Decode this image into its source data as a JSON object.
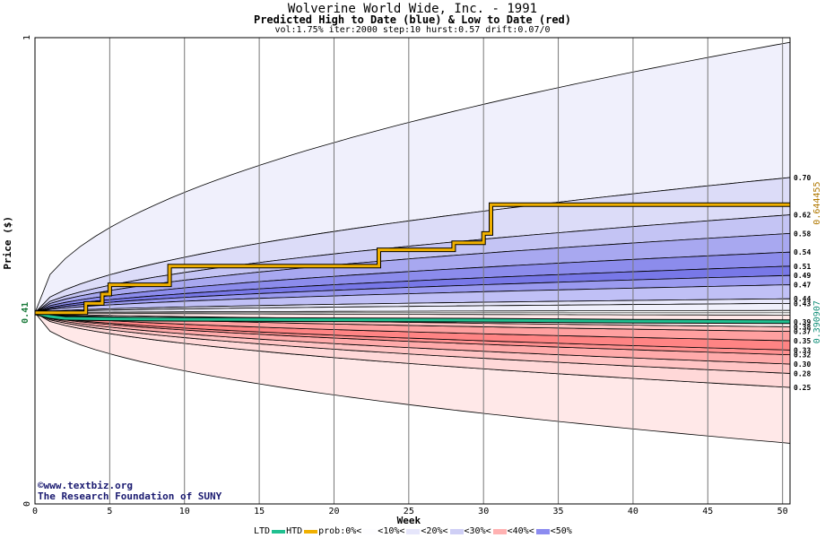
{
  "header": {
    "title": "Wolverine World Wide, Inc. - 1991",
    "subtitle": "Predicted High to Date (blue) &  Low to Date (red)",
    "params": "vol:1.75% iter:2000 step:10 hurst:0.57 drift:0.07/0"
  },
  "credits": {
    "line1": "©www.textbiz.org",
    "line2": "The Research Foundation of SUNY"
  },
  "legend": {
    "ltd_label": "LTD",
    "htd_label": "HTD",
    "prob_label": "prob:0%<",
    "bins": [
      "<10%<",
      "<20%<",
      "<30%<",
      "<40%<",
      "<50%"
    ],
    "bin_colors": [
      "#fdfdff",
      "#e6e6fb",
      "#cfcff5",
      "#ffb2b2",
      "#8c8cf0"
    ],
    "ltd_color": "#20c090",
    "htd_color": "#f0b000"
  },
  "chart_data": {
    "type": "area",
    "title": "Wolverine World Wide, Inc. - 1991",
    "xlabel": "Week",
    "ylabel": "Price ($)",
    "xlim": [
      0,
      50.5
    ],
    "ylim": [
      0,
      1
    ],
    "x_ticks": [
      0,
      5,
      10,
      15,
      20,
      25,
      30,
      35,
      40,
      45,
      50
    ],
    "y_ticks": [
      0,
      1
    ],
    "start_price": "0.41",
    "start_value": 0.41,
    "htd_final_label": "0.644455",
    "ltd_final_label": "0.390907",
    "grid": true,
    "high_bands_right_labels": [
      "0.70",
      "0.62",
      "0.58",
      "0.54",
      "0.51",
      "0.49",
      "0.47",
      "0.44",
      "0.43"
    ],
    "high_bands_end_values": [
      0.7,
      0.62,
      0.58,
      0.54,
      0.51,
      0.49,
      0.47,
      0.44,
      0.43
    ],
    "low_bands_right_labels": [
      "0.39",
      "0.38",
      "0.37",
      "0.35",
      "0.33",
      "0.32",
      "0.30",
      "0.28",
      "0.25"
    ],
    "low_bands_end_values": [
      0.39,
      0.38,
      0.37,
      0.35,
      0.33,
      0.32,
      0.3,
      0.28,
      0.25
    ],
    "outer_high_end": 0.99,
    "outer_low_end": 0.13,
    "band_colors_high": [
      "#f0f0fc",
      "#dcdcf8",
      "#c4c4f4",
      "#a8a8f0",
      "#8c8cec",
      "#7878e8",
      "#9a9af0",
      "#c0c0f6",
      "#e8e8fc"
    ],
    "band_colors_low": [
      "#ffe8e8",
      "#ffd8d8",
      "#ffc4c4",
      "#ffaaaa",
      "#ff9090",
      "#ff8484",
      "#ffa0a0",
      "#ffc0c0",
      "#fff0f0"
    ],
    "htd_series": {
      "x": [
        0,
        2,
        3.4,
        3.4,
        4.5,
        4.5,
        5,
        5,
        9,
        9,
        23,
        23,
        28,
        28,
        30,
        30,
        30.5,
        30.5,
        50.5
      ],
      "y": [
        0.41,
        0.41,
        0.41,
        0.43,
        0.43,
        0.45,
        0.45,
        0.47,
        0.47,
        0.51,
        0.51,
        0.545,
        0.545,
        0.56,
        0.56,
        0.58,
        0.58,
        0.642,
        0.642
      ]
    },
    "ltd_series": {
      "x": [
        0,
        1,
        2,
        5,
        10,
        20,
        30,
        40,
        50.5
      ],
      "y": [
        0.41,
        0.402,
        0.398,
        0.397,
        0.396,
        0.395,
        0.394,
        0.392,
        0.391
      ]
    }
  }
}
